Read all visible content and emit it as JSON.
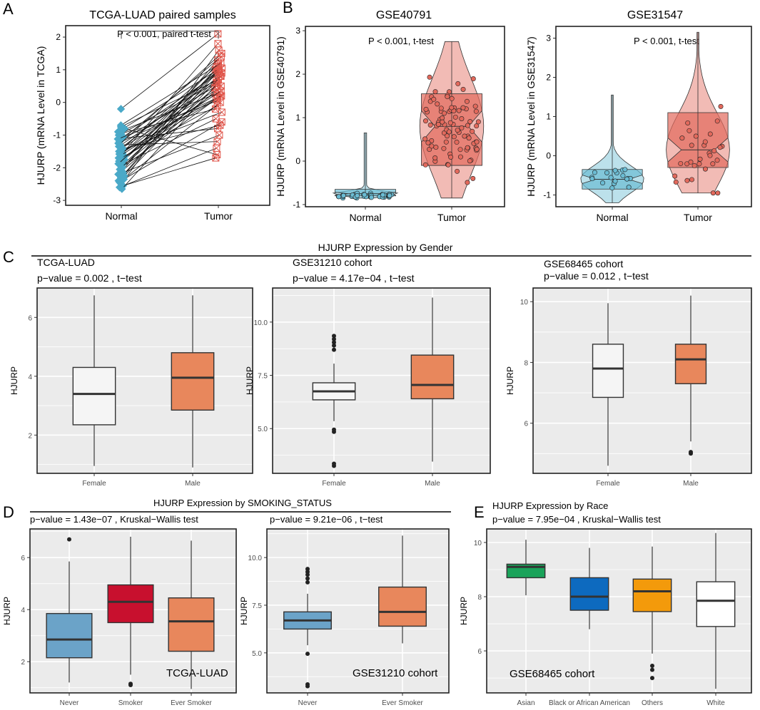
{
  "chart_data": [
    {
      "id": "A",
      "panel_letter": "A",
      "type": "paired-dot",
      "title": "TCGA-LUAD paired samples",
      "annotation": "P < 0.001, paired t-test",
      "ylabel": "HJURP (mRNA Level in TCGA)",
      "ylim": [
        -3.15,
        2.35
      ],
      "yticks": [
        -3,
        -2,
        -1,
        0,
        1,
        2
      ],
      "categories": [
        "Normal",
        "Tumor"
      ],
      "colors": {
        "Normal": "#4aa9c8",
        "Tumor": "#e0554a"
      },
      "pairs": [
        [
          -2.5,
          1.6
        ],
        [
          -2.4,
          0.9
        ],
        [
          -2.3,
          1.1
        ],
        [
          -2.2,
          0.5
        ],
        [
          -2.1,
          1.3
        ],
        [
          -2.05,
          0.2
        ],
        [
          -2.0,
          1.0
        ],
        [
          -1.95,
          0.7
        ],
        [
          -1.9,
          -0.5
        ],
        [
          -1.85,
          1.2
        ],
        [
          -1.8,
          0.3
        ],
        [
          -1.75,
          0.9
        ],
        [
          -1.7,
          1.8
        ],
        [
          -1.65,
          0.1
        ],
        [
          -1.6,
          1.0
        ],
        [
          -1.55,
          0.6
        ],
        [
          -1.5,
          -0.3
        ],
        [
          -1.45,
          1.1
        ],
        [
          -1.4,
          0.4
        ],
        [
          -1.35,
          0.8
        ],
        [
          -1.3,
          -1.2
        ],
        [
          -1.25,
          0.2
        ],
        [
          -1.2,
          1.4
        ],
        [
          -1.15,
          0.5
        ],
        [
          -1.1,
          -0.8
        ],
        [
          -1.05,
          0.9
        ],
        [
          -1.0,
          0.6
        ],
        [
          -0.95,
          -0.2
        ],
        [
          -0.9,
          1.0
        ],
        [
          -0.85,
          0.3
        ],
        [
          -0.8,
          -1.6
        ],
        [
          -0.75,
          0.7
        ],
        [
          -0.7,
          1.2
        ],
        [
          -0.2,
          2.1
        ],
        [
          -2.6,
          -1.4
        ],
        [
          -2.55,
          -1.7
        ],
        [
          -2.45,
          0.0
        ],
        [
          -2.35,
          -0.6
        ],
        [
          -2.25,
          0.8
        ],
        [
          -2.15,
          -1.0
        ],
        [
          -1.98,
          0.45
        ],
        [
          -1.72,
          -0.1
        ],
        [
          -1.58,
          0.15
        ],
        [
          -1.42,
          -0.7
        ],
        [
          -1.28,
          1.5
        ],
        [
          -1.12,
          0.05
        ],
        [
          -2.65,
          0.6
        ],
        [
          -1.88,
          1.05
        ],
        [
          -1.62,
          0.35
        ],
        [
          -1.38,
          0.95
        ]
      ]
    },
    {
      "id": "B1",
      "panel_letter": "B",
      "type": "violin-box-jitter",
      "title": "GSE40791",
      "annotation": "P < 0.001, t-test",
      "ylabel": "HJURP (mRNA Level in GSE40791)",
      "ylim": [
        -1.05,
        3.1
      ],
      "yticks": [
        -1,
        0,
        1,
        2,
        3
      ],
      "categories": [
        "Normal",
        "Tumor"
      ],
      "colors": {
        "Normal": "#6bbcd3",
        "Tumor": "#e2695c"
      },
      "groups": [
        {
          "name": "Normal",
          "box": {
            "min": -0.85,
            "q1": -0.8,
            "median": -0.75,
            "q3": -0.65,
            "max": 0.65
          }
        },
        {
          "name": "Tumor",
          "box": {
            "min": -0.85,
            "q1": -0.1,
            "median": 0.8,
            "q3": 1.55,
            "max": 2.75
          }
        }
      ]
    },
    {
      "id": "B2",
      "panel_letter": "",
      "type": "violin-box-jitter",
      "title": "GSE31547",
      "annotation": "P < 0.001, t-test",
      "ylabel": "HJURP (mRNA Level in GSE31547)",
      "ylim": [
        -1.3,
        3.3
      ],
      "yticks": [
        -1,
        0,
        1,
        2,
        3
      ],
      "categories": [
        "Normal",
        "Tumor"
      ],
      "colors": {
        "Normal": "#6bbcd3",
        "Tumor": "#e2695c"
      },
      "groups": [
        {
          "name": "Normal",
          "box": {
            "min": -1.2,
            "q1": -0.85,
            "median": -0.6,
            "q3": -0.35,
            "max": 1.55
          }
        },
        {
          "name": "Tumor",
          "box": {
            "min": -0.95,
            "q1": -0.3,
            "median": 0.15,
            "q3": 1.1,
            "max": 3.15
          }
        }
      ]
    },
    {
      "id": "C1",
      "panel_letter": "C",
      "type": "box",
      "section_title": "HJURP Expression by Gender",
      "title": "TCGA-LUAD",
      "annotation": "p−value =  0.002 , t−test",
      "ylabel": "HJURP",
      "ylim": [
        0.7,
        7.0
      ],
      "yticks": [
        2,
        4,
        6
      ],
      "ytick_labels": [
        "2",
        "4",
        "6"
      ],
      "categories": [
        "Female",
        "Male"
      ],
      "groups": [
        {
          "name": "Female",
          "color": "#f5f5f5",
          "min": 0.95,
          "q1": 2.35,
          "median": 3.4,
          "q3": 4.3,
          "max": 6.75,
          "outliers": []
        },
        {
          "name": "Male",
          "color": "#e8875c",
          "min": 0.9,
          "q1": 2.85,
          "median": 3.95,
          "q3": 4.8,
          "max": 6.75,
          "outliers": []
        }
      ]
    },
    {
      "id": "C2",
      "panel_letter": "",
      "type": "box",
      "title": "GSE31210 cohort",
      "annotation": "p−value =  4.17e−04 , t−test",
      "ylabel": "HJURP",
      "ylim": [
        2.9,
        11.6
      ],
      "yticks": [
        5,
        7.5,
        10
      ],
      "ytick_labels": [
        "5.0",
        "7.5",
        "10.0"
      ],
      "categories": [
        "Female",
        "Male"
      ],
      "groups": [
        {
          "name": "Female",
          "color": "#f5f5f5",
          "min": 5.35,
          "q1": 6.35,
          "median": 6.75,
          "q3": 7.15,
          "max": 8.05,
          "outliers": [
            8.7,
            8.9,
            9.05,
            9.2,
            9.35,
            4.95,
            4.85,
            3.35,
            3.25
          ]
        },
        {
          "name": "Male",
          "color": "#e8875c",
          "min": 3.45,
          "q1": 6.4,
          "median": 7.05,
          "q3": 8.45,
          "max": 11.15,
          "outliers": []
        }
      ]
    },
    {
      "id": "C3",
      "panel_letter": "",
      "type": "box",
      "title": "GSE68465 cohort",
      "annotation": "p−value =  0.012 , t−test",
      "ylabel": "HJURP",
      "ylim": [
        4.35,
        10.45
      ],
      "yticks": [
        6,
        8,
        10
      ],
      "ytick_labels": [
        "6",
        "8",
        "10"
      ],
      "categories": [
        "Female",
        "Male"
      ],
      "groups": [
        {
          "name": "Female",
          "color": "#f5f5f5",
          "min": 4.6,
          "q1": 6.85,
          "median": 7.8,
          "q3": 8.6,
          "max": 9.95,
          "outliers": []
        },
        {
          "name": "Male",
          "color": "#e8875c",
          "min": 5.4,
          "q1": 7.3,
          "median": 8.1,
          "q3": 8.6,
          "max": 10.2,
          "outliers": [
            5.0,
            5.05
          ]
        }
      ]
    },
    {
      "id": "D1",
      "panel_letter": "D",
      "type": "box",
      "section_title": "HJURP Expression by SMOKING_STATUS",
      "title": "",
      "annotation": "p−value =  1.43e−07 , Kruskal−Wallis test",
      "inner_label": "TCGA-LUAD",
      "ylabel": "HJURP",
      "ylim": [
        0.8,
        7.1
      ],
      "yticks": [
        2,
        4,
        6
      ],
      "ytick_labels": [
        "2",
        "4",
        "6"
      ],
      "categories": [
        "Never",
        "Smoker",
        "Ever Smoker"
      ],
      "groups": [
        {
          "name": "Never",
          "color": "#6ba3c8",
          "min": 1.2,
          "q1": 2.15,
          "median": 2.85,
          "q3": 3.85,
          "max": 5.85,
          "outliers": [
            6.7
          ]
        },
        {
          "name": "Smoker",
          "color": "#c8102e",
          "min": 1.5,
          "q1": 3.5,
          "median": 4.3,
          "q3": 4.95,
          "max": 6.8,
          "outliers": [
            1.15,
            1.1
          ]
        },
        {
          "name": "Ever Smoker",
          "color": "#e8875c",
          "min": 0.95,
          "q1": 2.4,
          "median": 3.55,
          "q3": 4.45,
          "max": 6.65,
          "outliers": []
        }
      ]
    },
    {
      "id": "D2",
      "panel_letter": "",
      "type": "box",
      "title": "",
      "annotation": "p−value =  9.21e−06 , t−test",
      "inner_label": "GSE31210 cohort",
      "ylabel": "HJURP",
      "ylim": [
        2.9,
        11.5
      ],
      "yticks": [
        5,
        7.5,
        10
      ],
      "ytick_labels": [
        "5.0",
        "7.5",
        "10.0"
      ],
      "categories": [
        "Never",
        "Ever Smoker"
      ],
      "groups": [
        {
          "name": "Never",
          "color": "#6ba3c8",
          "min": 5.4,
          "q1": 6.25,
          "median": 6.7,
          "q3": 7.15,
          "max": 8.1,
          "outliers": [
            8.7,
            8.9,
            9.1,
            9.25,
            9.4,
            4.95,
            3.35,
            3.25
          ]
        },
        {
          "name": "Ever Smoker",
          "color": "#e8875c",
          "min": 5.5,
          "q1": 6.4,
          "median": 7.15,
          "q3": 8.45,
          "max": 11.15,
          "outliers": []
        }
      ]
    },
    {
      "id": "E",
      "panel_letter": "E",
      "type": "box",
      "title": "HJURP Expression by Race",
      "annotation": "p−value =  7.95e−04 , Kruskal−Wallis test",
      "inner_label": "GSE68465 cohort",
      "ylabel": "HJURP",
      "ylim": [
        4.45,
        10.5
      ],
      "yticks": [
        6,
        8,
        10
      ],
      "ytick_labels": [
        "6",
        "8",
        "10"
      ],
      "categories": [
        "Asian",
        "Black or African American",
        "Others",
        "White"
      ],
      "groups": [
        {
          "name": "Asian",
          "color": "#1aa35a",
          "min": 8.05,
          "q1": 8.7,
          "median": 9.1,
          "q3": 9.2,
          "max": 10.1,
          "outliers": []
        },
        {
          "name": "Black or African American",
          "color": "#0d6abf",
          "min": 6.8,
          "q1": 7.5,
          "median": 8.0,
          "q3": 8.7,
          "max": 9.8,
          "outliers": []
        },
        {
          "name": "Others",
          "color": "#f39a0b",
          "min": 5.9,
          "q1": 7.45,
          "median": 8.2,
          "q3": 8.65,
          "max": 9.85,
          "outliers": [
            5.45,
            5.3,
            5.0
          ]
        },
        {
          "name": "White",
          "color": "#ffffff",
          "min": 4.6,
          "q1": 6.9,
          "median": 7.85,
          "q3": 8.55,
          "max": 10.35,
          "outliers": []
        }
      ]
    }
  ]
}
